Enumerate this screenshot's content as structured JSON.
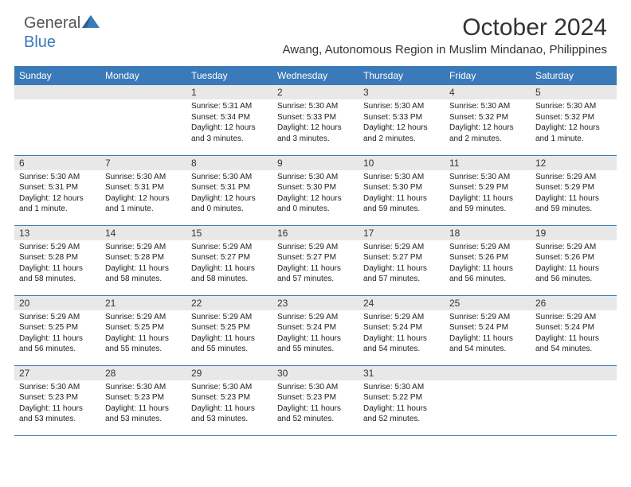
{
  "logo": {
    "general": "General",
    "blue": "Blue"
  },
  "title": "October 2024",
  "location": "Awang, Autonomous Region in Muslim Mindanao, Philippines",
  "colors": {
    "header_bg": "#3a7ab8",
    "header_text": "#ffffff",
    "daynum_bg": "#e8e8e8",
    "text": "#222222",
    "page_bg": "#ffffff",
    "row_border": "#3a7ab8"
  },
  "typography": {
    "title_fontsize": 30,
    "location_fontsize": 15,
    "weekday_fontsize": 12,
    "daynum_fontsize": 12,
    "body_fontsize": 10
  },
  "weekdays": [
    "Sunday",
    "Monday",
    "Tuesday",
    "Wednesday",
    "Thursday",
    "Friday",
    "Saturday"
  ],
  "weeks": [
    [
      {
        "n": "",
        "sr": "",
        "ss": "",
        "dl1": "",
        "dl2": ""
      },
      {
        "n": "",
        "sr": "",
        "ss": "",
        "dl1": "",
        "dl2": ""
      },
      {
        "n": "1",
        "sr": "Sunrise: 5:31 AM",
        "ss": "Sunset: 5:34 PM",
        "dl1": "Daylight: 12 hours",
        "dl2": "and 3 minutes."
      },
      {
        "n": "2",
        "sr": "Sunrise: 5:30 AM",
        "ss": "Sunset: 5:33 PM",
        "dl1": "Daylight: 12 hours",
        "dl2": "and 3 minutes."
      },
      {
        "n": "3",
        "sr": "Sunrise: 5:30 AM",
        "ss": "Sunset: 5:33 PM",
        "dl1": "Daylight: 12 hours",
        "dl2": "and 2 minutes."
      },
      {
        "n": "4",
        "sr": "Sunrise: 5:30 AM",
        "ss": "Sunset: 5:32 PM",
        "dl1": "Daylight: 12 hours",
        "dl2": "and 2 minutes."
      },
      {
        "n": "5",
        "sr": "Sunrise: 5:30 AM",
        "ss": "Sunset: 5:32 PM",
        "dl1": "Daylight: 12 hours",
        "dl2": "and 1 minute."
      }
    ],
    [
      {
        "n": "6",
        "sr": "Sunrise: 5:30 AM",
        "ss": "Sunset: 5:31 PM",
        "dl1": "Daylight: 12 hours",
        "dl2": "and 1 minute."
      },
      {
        "n": "7",
        "sr": "Sunrise: 5:30 AM",
        "ss": "Sunset: 5:31 PM",
        "dl1": "Daylight: 12 hours",
        "dl2": "and 1 minute."
      },
      {
        "n": "8",
        "sr": "Sunrise: 5:30 AM",
        "ss": "Sunset: 5:31 PM",
        "dl1": "Daylight: 12 hours",
        "dl2": "and 0 minutes."
      },
      {
        "n": "9",
        "sr": "Sunrise: 5:30 AM",
        "ss": "Sunset: 5:30 PM",
        "dl1": "Daylight: 12 hours",
        "dl2": "and 0 minutes."
      },
      {
        "n": "10",
        "sr": "Sunrise: 5:30 AM",
        "ss": "Sunset: 5:30 PM",
        "dl1": "Daylight: 11 hours",
        "dl2": "and 59 minutes."
      },
      {
        "n": "11",
        "sr": "Sunrise: 5:30 AM",
        "ss": "Sunset: 5:29 PM",
        "dl1": "Daylight: 11 hours",
        "dl2": "and 59 minutes."
      },
      {
        "n": "12",
        "sr": "Sunrise: 5:29 AM",
        "ss": "Sunset: 5:29 PM",
        "dl1": "Daylight: 11 hours",
        "dl2": "and 59 minutes."
      }
    ],
    [
      {
        "n": "13",
        "sr": "Sunrise: 5:29 AM",
        "ss": "Sunset: 5:28 PM",
        "dl1": "Daylight: 11 hours",
        "dl2": "and 58 minutes."
      },
      {
        "n": "14",
        "sr": "Sunrise: 5:29 AM",
        "ss": "Sunset: 5:28 PM",
        "dl1": "Daylight: 11 hours",
        "dl2": "and 58 minutes."
      },
      {
        "n": "15",
        "sr": "Sunrise: 5:29 AM",
        "ss": "Sunset: 5:27 PM",
        "dl1": "Daylight: 11 hours",
        "dl2": "and 58 minutes."
      },
      {
        "n": "16",
        "sr": "Sunrise: 5:29 AM",
        "ss": "Sunset: 5:27 PM",
        "dl1": "Daylight: 11 hours",
        "dl2": "and 57 minutes."
      },
      {
        "n": "17",
        "sr": "Sunrise: 5:29 AM",
        "ss": "Sunset: 5:27 PM",
        "dl1": "Daylight: 11 hours",
        "dl2": "and 57 minutes."
      },
      {
        "n": "18",
        "sr": "Sunrise: 5:29 AM",
        "ss": "Sunset: 5:26 PM",
        "dl1": "Daylight: 11 hours",
        "dl2": "and 56 minutes."
      },
      {
        "n": "19",
        "sr": "Sunrise: 5:29 AM",
        "ss": "Sunset: 5:26 PM",
        "dl1": "Daylight: 11 hours",
        "dl2": "and 56 minutes."
      }
    ],
    [
      {
        "n": "20",
        "sr": "Sunrise: 5:29 AM",
        "ss": "Sunset: 5:25 PM",
        "dl1": "Daylight: 11 hours",
        "dl2": "and 56 minutes."
      },
      {
        "n": "21",
        "sr": "Sunrise: 5:29 AM",
        "ss": "Sunset: 5:25 PM",
        "dl1": "Daylight: 11 hours",
        "dl2": "and 55 minutes."
      },
      {
        "n": "22",
        "sr": "Sunrise: 5:29 AM",
        "ss": "Sunset: 5:25 PM",
        "dl1": "Daylight: 11 hours",
        "dl2": "and 55 minutes."
      },
      {
        "n": "23",
        "sr": "Sunrise: 5:29 AM",
        "ss": "Sunset: 5:24 PM",
        "dl1": "Daylight: 11 hours",
        "dl2": "and 55 minutes."
      },
      {
        "n": "24",
        "sr": "Sunrise: 5:29 AM",
        "ss": "Sunset: 5:24 PM",
        "dl1": "Daylight: 11 hours",
        "dl2": "and 54 minutes."
      },
      {
        "n": "25",
        "sr": "Sunrise: 5:29 AM",
        "ss": "Sunset: 5:24 PM",
        "dl1": "Daylight: 11 hours",
        "dl2": "and 54 minutes."
      },
      {
        "n": "26",
        "sr": "Sunrise: 5:29 AM",
        "ss": "Sunset: 5:24 PM",
        "dl1": "Daylight: 11 hours",
        "dl2": "and 54 minutes."
      }
    ],
    [
      {
        "n": "27",
        "sr": "Sunrise: 5:30 AM",
        "ss": "Sunset: 5:23 PM",
        "dl1": "Daylight: 11 hours",
        "dl2": "and 53 minutes."
      },
      {
        "n": "28",
        "sr": "Sunrise: 5:30 AM",
        "ss": "Sunset: 5:23 PM",
        "dl1": "Daylight: 11 hours",
        "dl2": "and 53 minutes."
      },
      {
        "n": "29",
        "sr": "Sunrise: 5:30 AM",
        "ss": "Sunset: 5:23 PM",
        "dl1": "Daylight: 11 hours",
        "dl2": "and 53 minutes."
      },
      {
        "n": "30",
        "sr": "Sunrise: 5:30 AM",
        "ss": "Sunset: 5:23 PM",
        "dl1": "Daylight: 11 hours",
        "dl2": "and 52 minutes."
      },
      {
        "n": "31",
        "sr": "Sunrise: 5:30 AM",
        "ss": "Sunset: 5:22 PM",
        "dl1": "Daylight: 11 hours",
        "dl2": "and 52 minutes."
      },
      {
        "n": "",
        "sr": "",
        "ss": "",
        "dl1": "",
        "dl2": ""
      },
      {
        "n": "",
        "sr": "",
        "ss": "",
        "dl1": "",
        "dl2": ""
      }
    ]
  ]
}
